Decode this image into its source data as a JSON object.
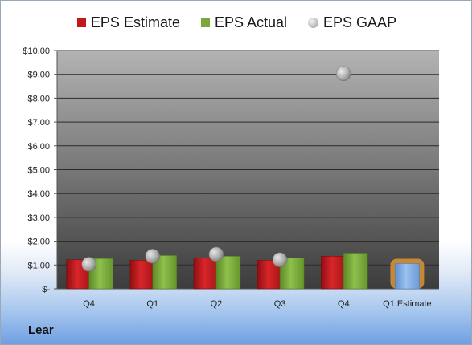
{
  "company": "Lear",
  "legend": {
    "estimate": "EPS Estimate",
    "actual": "EPS Actual",
    "gaap": "EPS GAAP"
  },
  "colors": {
    "estimate": "#c0181b",
    "actual": "#79a83b",
    "gaap": "#a9a9a9",
    "future_estimate": "#7aa7e0",
    "future_glow": "#f0a030",
    "plot_bg_top": "#b3b3b3",
    "plot_bg_bottom": "#3c3c3c"
  },
  "chart_data": {
    "type": "bar",
    "categories": [
      "Q4",
      "Q1",
      "Q2",
      "Q3",
      "Q4",
      "Q1 Estimate"
    ],
    "series": [
      {
        "name": "EPS Estimate",
        "values": [
          1.22,
          1.2,
          1.3,
          1.2,
          1.37,
          1.06
        ]
      },
      {
        "name": "EPS Actual",
        "values": [
          1.27,
          1.4,
          1.37,
          1.3,
          1.5,
          null
        ]
      },
      {
        "name": "EPS GAAP",
        "type": "scatter",
        "values": [
          1.03,
          1.37,
          1.45,
          1.22,
          9.03,
          null
        ]
      }
    ],
    "ylim": [
      0,
      10
    ],
    "yticks": [
      "$-",
      "$1.00",
      "$2.00",
      "$3.00",
      "$4.00",
      "$5.00",
      "$6.00",
      "$7.00",
      "$8.00",
      "$9.00",
      "$10.00"
    ],
    "grid": true,
    "legend_position": "top"
  }
}
